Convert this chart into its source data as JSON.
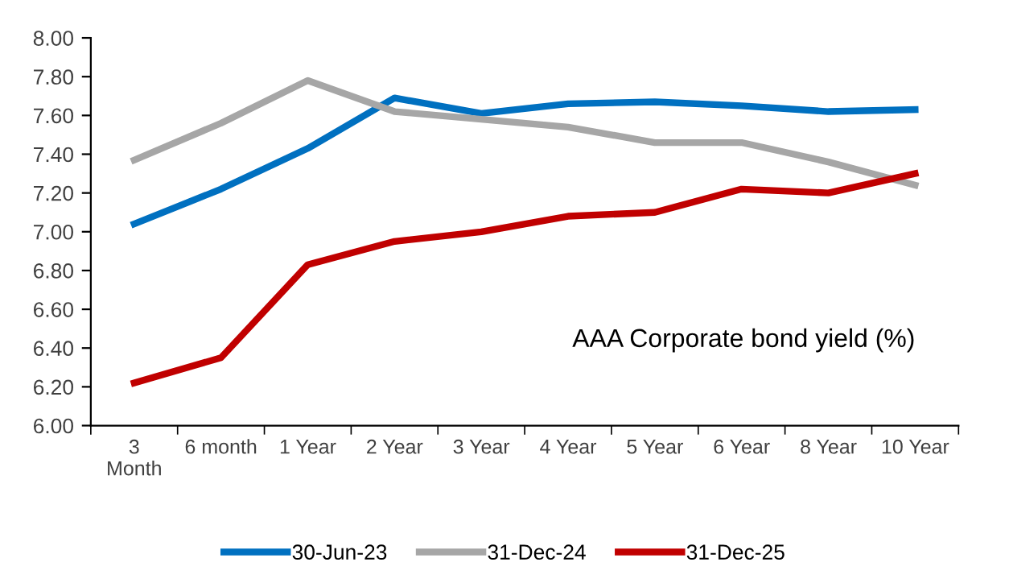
{
  "chart_data": {
    "type": "line",
    "categories": [
      "3\nMonth",
      "6 month",
      "1 Year",
      "2 Year",
      "3 Year",
      "4 Year",
      "5 Year",
      "6 Year",
      "8 Year",
      "10 Year"
    ],
    "series": [
      {
        "name": "30-Jun-23",
        "color": "#0070c0",
        "values": [
          7.04,
          7.22,
          7.43,
          7.69,
          7.61,
          7.66,
          7.67,
          7.65,
          7.62,
          7.63
        ]
      },
      {
        "name": "31-Dec-24",
        "color": "#a6a6a6",
        "values": [
          7.37,
          7.56,
          7.78,
          7.62,
          7.58,
          7.54,
          7.46,
          7.46,
          7.36,
          7.24
        ]
      },
      {
        "name": "31-Dec-25",
        "color": "#c00000",
        "values": [
          6.22,
          6.35,
          6.83,
          6.95,
          7.0,
          7.08,
          7.1,
          7.22,
          7.2,
          7.3
        ]
      }
    ],
    "ylim": [
      6.0,
      8.0
    ],
    "yticks": [
      {
        "value": 6.0,
        "label": "6.00"
      },
      {
        "value": 6.2,
        "label": "6.20"
      },
      {
        "value": 6.4,
        "label": "6.40"
      },
      {
        "value": 6.6,
        "label": "6.60"
      },
      {
        "value": 6.8,
        "label": "6.80"
      },
      {
        "value": 7.0,
        "label": "7.00"
      },
      {
        "value": 7.2,
        "label": "7.20"
      },
      {
        "value": 7.4,
        "label": "7.40"
      },
      {
        "value": 7.6,
        "label": "7.60"
      },
      {
        "value": 7.8,
        "label": "7.80"
      },
      {
        "value": 8.0,
        "label": "8.00"
      }
    ],
    "annotations": [
      "AAA Corporate bond yield (%)"
    ],
    "grid": false,
    "legend": "bottom",
    "marker": "none",
    "line_style": "solid"
  }
}
